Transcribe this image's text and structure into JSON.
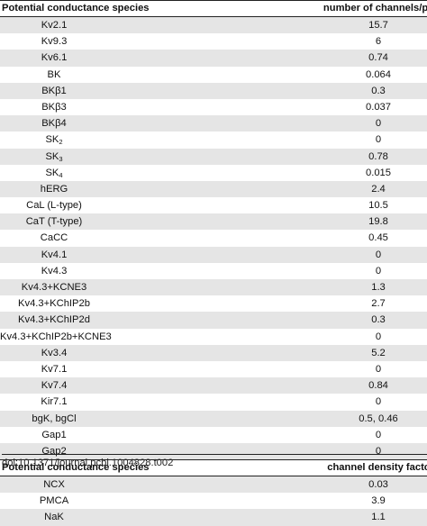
{
  "section1": {
    "header": {
      "species": "Potential conductance species",
      "value": "number of channels/pF"
    },
    "rows": [
      {
        "name": "Kv2.1",
        "value": "15.7"
      },
      {
        "name": "Kv9.3",
        "value": "6"
      },
      {
        "name": "Kv6.1",
        "value": "0.74"
      },
      {
        "name": "BK",
        "value": "0.064"
      },
      {
        "name": "BKβ1",
        "value": "0.3"
      },
      {
        "name": "BKβ3",
        "value": "0.037"
      },
      {
        "name": "BKβ4",
        "value": "0"
      },
      {
        "name": "SK",
        "sub": "2",
        "value": "0"
      },
      {
        "name": "SK",
        "sub": "3",
        "value": "0.78"
      },
      {
        "name": "SK",
        "sub": "4",
        "value": "0.015"
      },
      {
        "name": "hERG",
        "value": "2.4"
      },
      {
        "name": "CaL (L-type)",
        "value": "10.5"
      },
      {
        "name": "CaT (T-type)",
        "value": "19.8"
      },
      {
        "name": "CaCC",
        "value": "0.45"
      },
      {
        "name": "Kv4.1",
        "value": "0"
      },
      {
        "name": "Kv4.3",
        "value": "0"
      },
      {
        "name": "Kv4.3+KCNE3",
        "value": "1.3"
      },
      {
        "name": "Kv4.3+KChIP2b",
        "value": "2.7"
      },
      {
        "name": "Kv4.3+KChIP2d",
        "value": "0.3"
      },
      {
        "name": "Kv4.3+KChIP2b+KCNE3",
        "value": "0"
      },
      {
        "name": "Kv3.4",
        "value": "5.2"
      },
      {
        "name": "Kv7.1",
        "value": "0"
      },
      {
        "name": "Kv7.4",
        "value": "0.84"
      },
      {
        "name": "Kir7.1",
        "value": "0"
      },
      {
        "name": "bgK, bgCl",
        "value": "0.5, 0.46"
      },
      {
        "name": "Gap1",
        "value": "0"
      },
      {
        "name": "Gap2",
        "value": "0"
      }
    ]
  },
  "section2": {
    "header": {
      "species": "Potential conductance species",
      "value": "channel density factor"
    },
    "rows": [
      {
        "name": "NCX",
        "value": "0.03"
      },
      {
        "name": "PMCA",
        "value": "3.9"
      },
      {
        "name": "NaK",
        "value": "1.1"
      }
    ]
  },
  "doi": "doi:10.1371/journal.pcbi.1004828.t002"
}
